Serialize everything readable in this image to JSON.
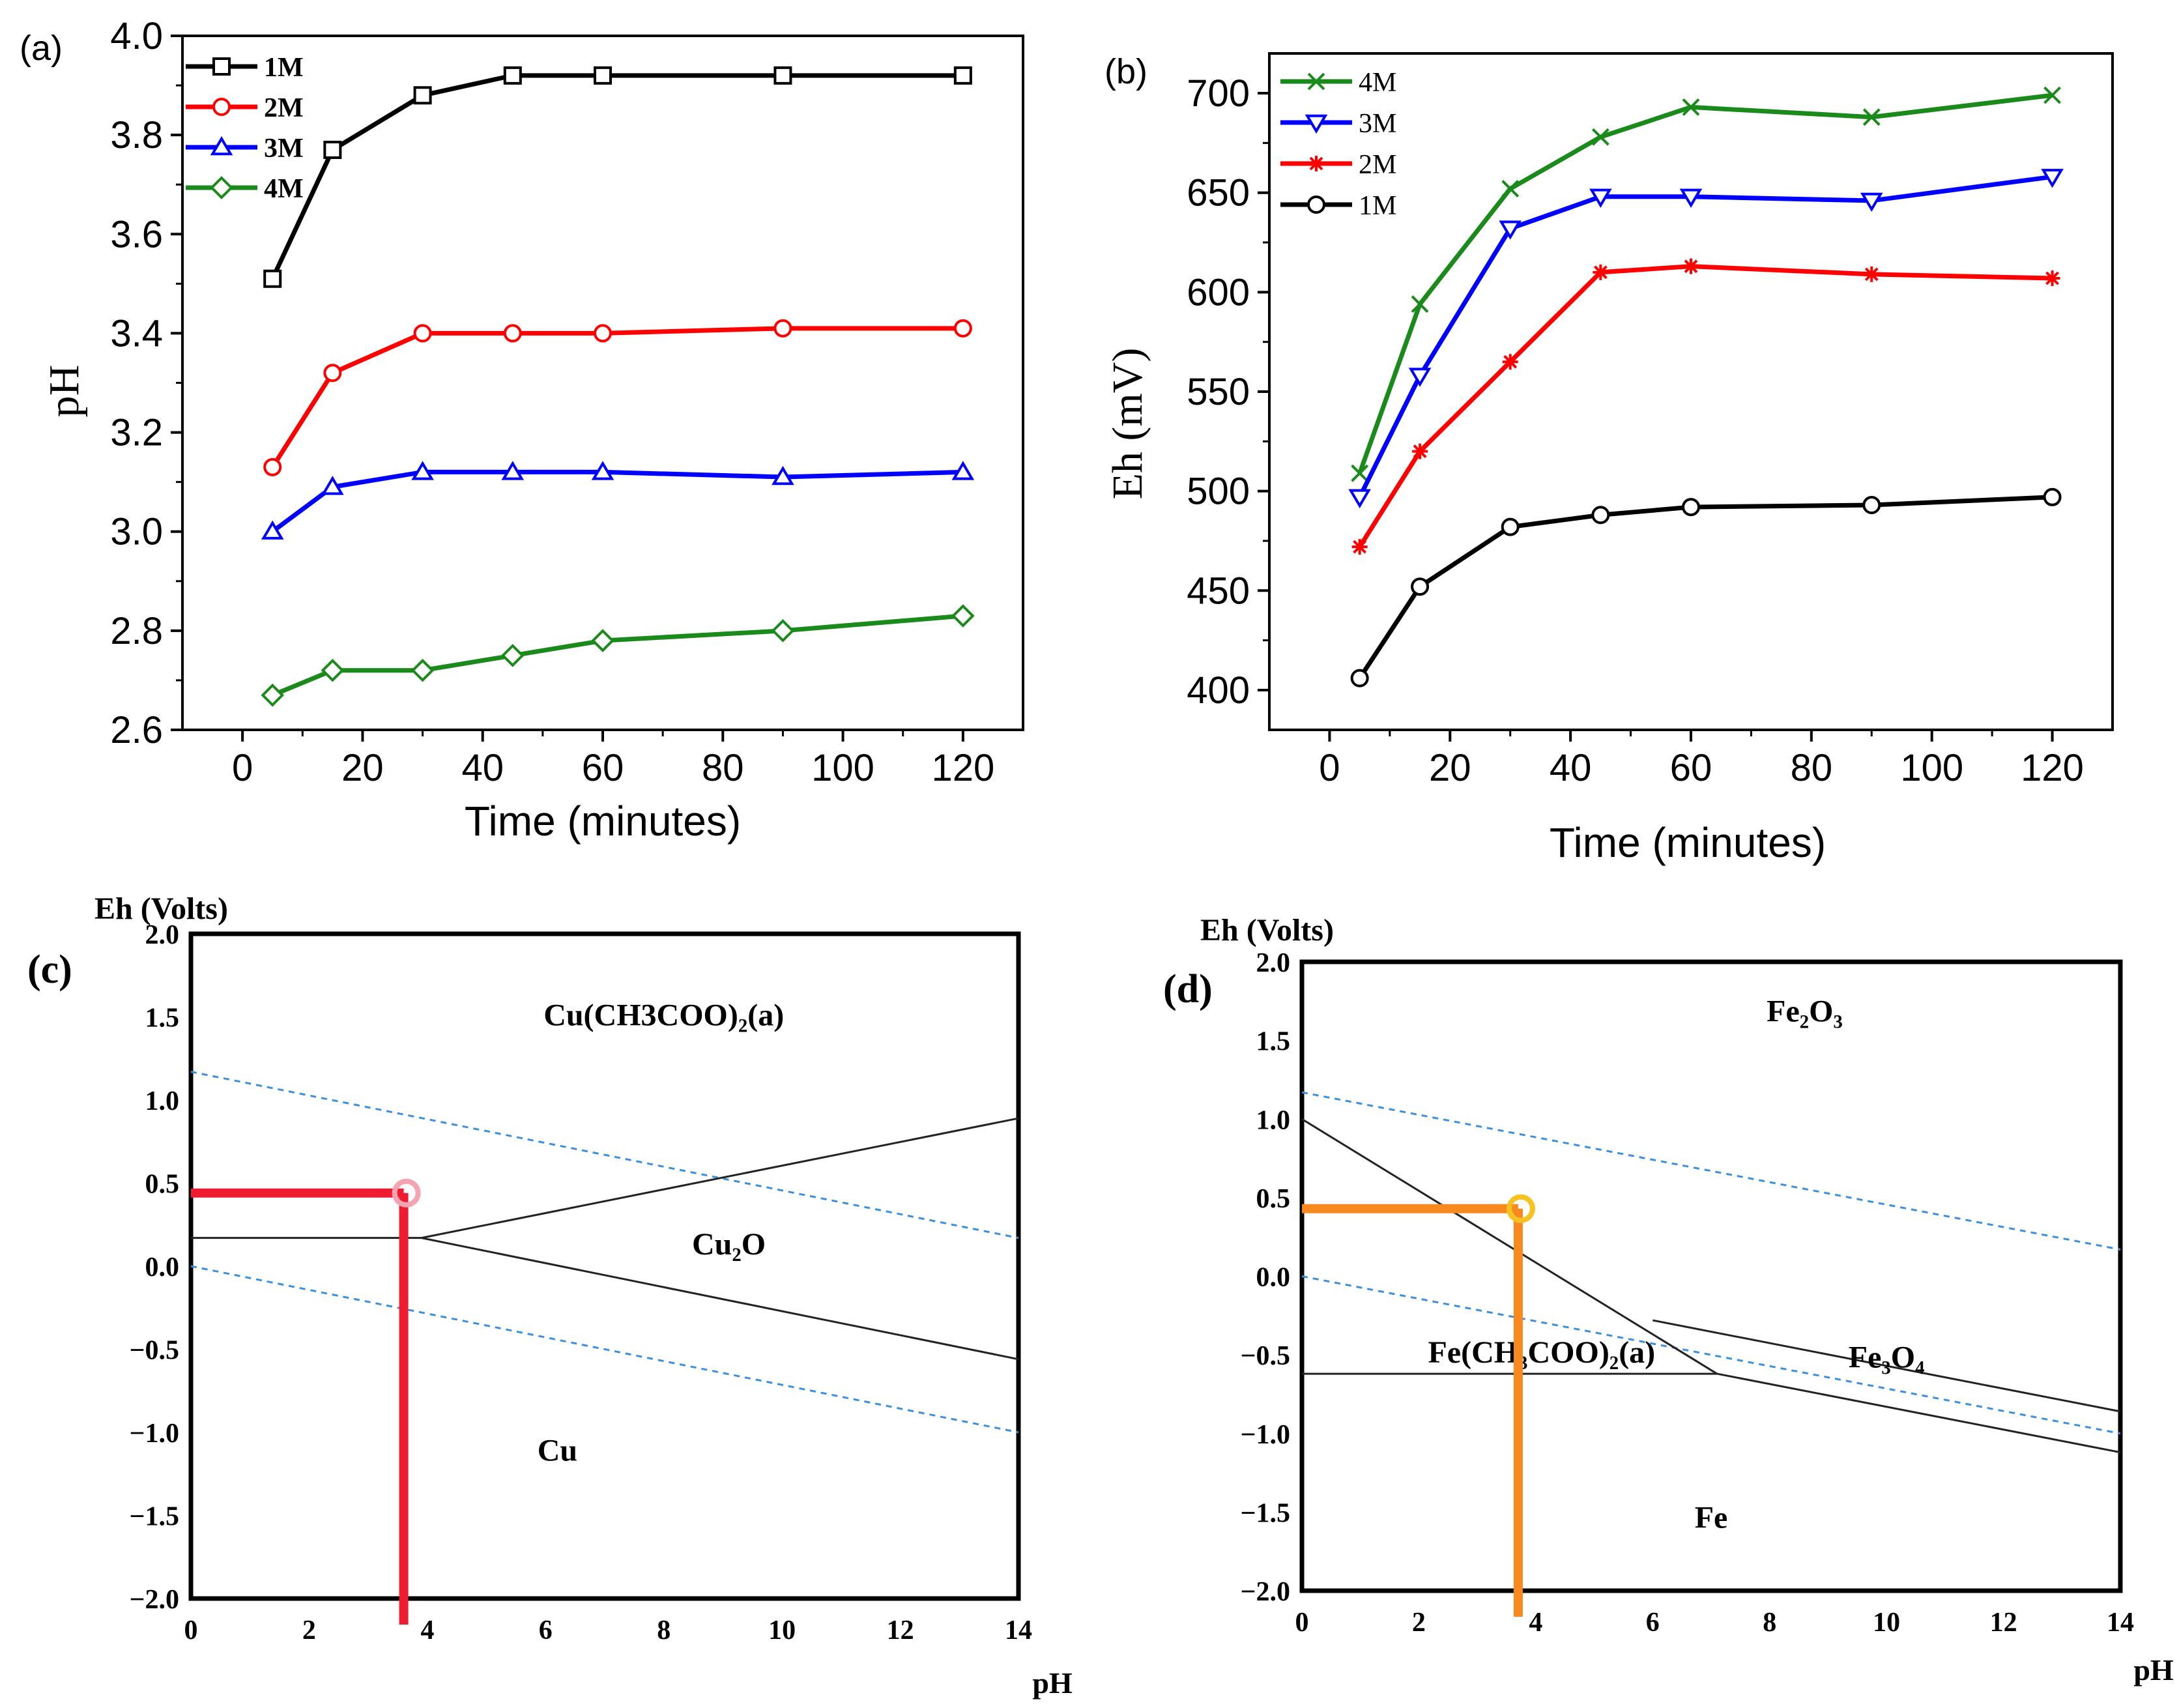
{
  "chart_data": [
    {
      "id": "a",
      "type": "line",
      "panel_label": "(a)",
      "title": "",
      "xlabel": "Time (minutes)",
      "ylabel": "pH",
      "xlim": [
        -10,
        130
      ],
      "ylim": [
        2.6,
        4.0
      ],
      "x_ticks": [
        0,
        20,
        40,
        60,
        80,
        100,
        120
      ],
      "x_tick_labels": [
        "0",
        "20",
        "40",
        "60",
        "80",
        "100",
        "120"
      ],
      "y_ticks": [
        2.6,
        2.8,
        3.0,
        3.2,
        3.4,
        3.6,
        3.8,
        4.0
      ],
      "y_tick_labels": [
        "2.6",
        "2.8",
        "3.0",
        "3.2",
        "3.4",
        "3.6",
        "3.8",
        "4.0"
      ],
      "legend": {
        "position": "top-left"
      },
      "x": [
        5,
        15,
        30,
        45,
        60,
        90,
        120
      ],
      "series": [
        {
          "name": "1M",
          "color": "#000000",
          "marker": "square",
          "values": [
            3.51,
            3.77,
            3.88,
            3.92,
            3.92,
            3.92,
            3.92
          ]
        },
        {
          "name": "2M",
          "color": "#ff0000",
          "marker": "circle",
          "values": [
            3.13,
            3.32,
            3.4,
            3.4,
            3.4,
            3.41,
            3.41
          ]
        },
        {
          "name": "3M",
          "color": "#0000ff",
          "marker": "triangle-up",
          "values": [
            3.0,
            3.09,
            3.12,
            3.12,
            3.12,
            3.11,
            3.12
          ]
        },
        {
          "name": "4M",
          "color": "#1a8a1a",
          "marker": "diamond",
          "values": [
            2.67,
            2.72,
            2.72,
            2.75,
            2.78,
            2.8,
            2.83
          ]
        }
      ]
    },
    {
      "id": "b",
      "type": "line",
      "panel_label": "(b)",
      "title": "",
      "xlabel": "Time (minutes)",
      "ylabel": "Eh (mV)",
      "xlim": [
        -10,
        130
      ],
      "ylim": [
        380,
        720
      ],
      "x_ticks": [
        0,
        20,
        40,
        60,
        80,
        100,
        120
      ],
      "x_tick_labels": [
        "0",
        "20",
        "40",
        "60",
        "80",
        "100",
        "120"
      ],
      "y_ticks": [
        400,
        450,
        500,
        550,
        600,
        650,
        700
      ],
      "y_tick_labels": [
        "400",
        "450",
        "500",
        "550",
        "600",
        "650",
        "700"
      ],
      "legend": {
        "position": "top-left"
      },
      "x": [
        5,
        15,
        30,
        45,
        60,
        90,
        120
      ],
      "series": [
        {
          "name": "4M",
          "color": "#1a8a1a",
          "marker": "x",
          "values": [
            509,
            594,
            652,
            678,
            693,
            688,
            699
          ]
        },
        {
          "name": "3M",
          "color": "#0000ff",
          "marker": "triangle-down",
          "values": [
            497,
            558,
            632,
            648,
            648,
            646,
            658
          ]
        },
        {
          "name": "2M",
          "color": "#ff0000",
          "marker": "star",
          "values": [
            472,
            520,
            565,
            610,
            613,
            609,
            607
          ]
        },
        {
          "name": "1M",
          "color": "#000000",
          "marker": "circle",
          "values": [
            406,
            452,
            482,
            488,
            492,
            493,
            497
          ]
        }
      ]
    },
    {
      "id": "c",
      "type": "phase-diagram",
      "panel_label": "(c)",
      "xlabel": "pH",
      "ylabel": "Eh (Volts)",
      "xlim": [
        0,
        14
      ],
      "ylim": [
        -2.0,
        2.0
      ],
      "x_ticks": [
        0,
        2,
        4,
        6,
        8,
        10,
        12,
        14
      ],
      "x_tick_labels": [
        "0",
        "2",
        "4",
        "6",
        "8",
        "10",
        "12",
        "14"
      ],
      "y_ticks": [
        -2.0,
        -1.5,
        -1.0,
        -0.5,
        0.0,
        0.5,
        1.0,
        1.5,
        2.0
      ],
      "y_tick_labels": [
        "−2.0",
        "−1.5",
        "−1.0",
        "−0.5",
        "0.0",
        "0.5",
        "1.0",
        "1.5",
        "2.0"
      ],
      "boundaries": [
        [
          [
            0,
            0.17
          ],
          [
            3.9,
            0.17
          ]
        ],
        [
          [
            3.9,
            0.17
          ],
          [
            14,
            0.89
          ]
        ],
        [
          [
            3.9,
            0.17
          ],
          [
            14,
            -0.56
          ]
        ]
      ],
      "water_lines": [
        [
          [
            0,
            1.17
          ],
          [
            14,
            0.17
          ]
        ],
        [
          [
            0,
            0.0
          ],
          [
            14,
            -1.0
          ]
        ]
      ],
      "regions": [
        {
          "label": "Cu(CH3COO)₂(a)",
          "at": [
            8.0,
            1.45
          ]
        },
        {
          "label": "Cu₂O",
          "at": [
            9.1,
            0.07
          ]
        },
        {
          "label": "Cu",
          "at": [
            6.2,
            -1.17
          ]
        }
      ],
      "highlight": {
        "ph": 3.6,
        "eh": 0.44,
        "color": "#ee1c2e",
        "marker_color": "#f4a3b3"
      }
    },
    {
      "id": "d",
      "type": "phase-diagram",
      "panel_label": "(d)",
      "xlabel": "pH",
      "ylabel": "Eh (Volts)",
      "xlim": [
        0,
        14
      ],
      "ylim": [
        -2.0,
        2.0
      ],
      "x_ticks": [
        0,
        2,
        4,
        6,
        8,
        10,
        12,
        14
      ],
      "x_tick_labels": [
        "0",
        "2",
        "4",
        "6",
        "8",
        "10",
        "12",
        "14"
      ],
      "y_ticks": [
        -2.0,
        -1.5,
        -1.0,
        -0.5,
        0.0,
        0.5,
        1.0,
        1.5,
        2.0
      ],
      "y_tick_labels": [
        "−2.0",
        "−1.5",
        "−1.0",
        "−0.5",
        "0.0",
        "0.5",
        "1.0",
        "1.5",
        "2.0"
      ],
      "boundaries": [
        [
          [
            0,
            1.0
          ],
          [
            7.1,
            -0.62
          ]
        ],
        [
          [
            0,
            -0.62
          ],
          [
            7.1,
            -0.62
          ]
        ],
        [
          [
            6.0,
            -0.28
          ],
          [
            14,
            -0.86
          ]
        ],
        [
          [
            7.1,
            -0.62
          ],
          [
            14,
            -1.12
          ]
        ]
      ],
      "water_lines": [
        [
          [
            0,
            1.17
          ],
          [
            14,
            0.17
          ]
        ],
        [
          [
            0,
            0.0
          ],
          [
            14,
            -1.0
          ]
        ]
      ],
      "regions": [
        {
          "label": "Fe₂O₃",
          "at": [
            8.6,
            1.62
          ]
        },
        {
          "label": "Fe(CH₃COO)₂(a)",
          "at": [
            4.1,
            -0.55
          ]
        },
        {
          "label": "Fe₃O₄",
          "at": [
            10.0,
            -0.58
          ]
        },
        {
          "label": "Fe",
          "at": [
            7.0,
            -1.6
          ]
        }
      ],
      "highlight": {
        "ph": 3.7,
        "eh": 0.43,
        "color": "#f7891f",
        "marker_color": "#f7c21f"
      }
    }
  ]
}
